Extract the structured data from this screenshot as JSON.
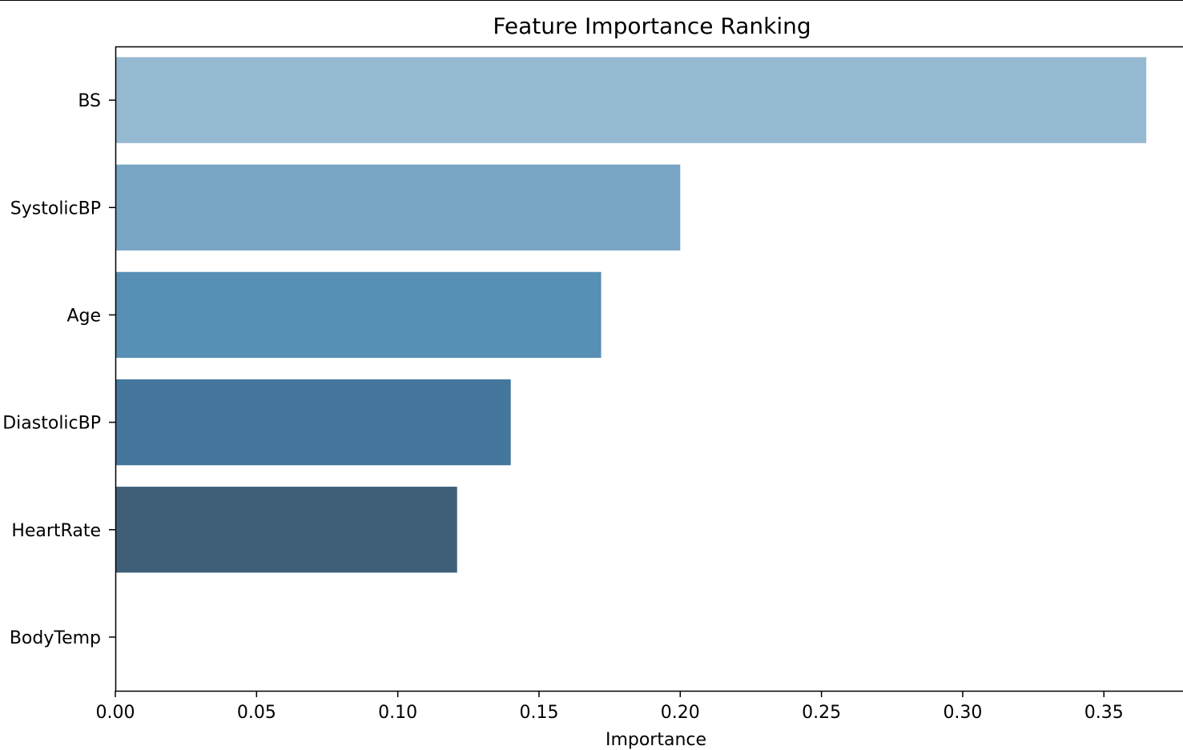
{
  "chart_data": {
    "type": "bar",
    "orientation": "horizontal",
    "title": "Feature Importance Ranking",
    "xlabel": "Importance",
    "ylabel": "",
    "xlim": [
      0,
      0.378
    ],
    "xticks": [
      0.0,
      0.05,
      0.1,
      0.15,
      0.2,
      0.25,
      0.3,
      0.35
    ],
    "xtick_labels": [
      "0.00",
      "0.05",
      "0.10",
      "0.15",
      "0.20",
      "0.25",
      "0.30",
      "0.35"
    ],
    "categories": [
      "BS",
      "SystolicBP",
      "Age",
      "DiastolicBP",
      "HeartRate",
      "BodyTemp"
    ],
    "values": [
      0.365,
      0.2,
      0.172,
      0.14,
      0.121,
      0.0
    ],
    "colors": [
      "#96b9d2",
      "#77a5c3",
      "#578fb5",
      "#45779c",
      "#3f5f79",
      "#2f3f4f"
    ],
    "grid": false,
    "legend": "none"
  }
}
